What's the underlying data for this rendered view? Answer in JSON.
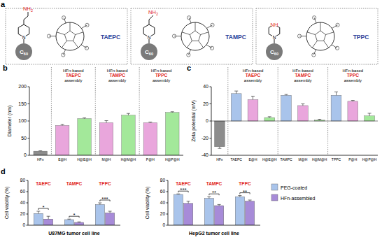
{
  "diagram": {
    "panel": "a",
    "structures": [
      {
        "name": "TAEPC",
        "core": {
          "symbol": "C",
          "subscript": "60"
        },
        "ring_atom": "N",
        "amine": {
          "symbol": "NH",
          "subscript": "2"
        }
      },
      {
        "name": "TAMPC",
        "core": {
          "symbol": "C",
          "subscript": "60"
        },
        "ring_atom": "N",
        "amine": {
          "symbol": "NH",
          "subscript": "2"
        }
      },
      {
        "name": "TPPC",
        "core": {
          "symbol": "C",
          "subscript": "60"
        },
        "ring_atom": "N",
        "amine": {
          "symbol": "NH"
        }
      }
    ]
  },
  "chart_data": [
    {
      "type": "bar",
      "panel": "b",
      "y_label": "Diameter (nm)",
      "categories": [
        "HFn",
        "E@H",
        "H@E@H",
        "M@H",
        "H@M@H",
        "P@H",
        "H@P@H"
      ],
      "values": [
        12,
        87,
        107,
        95,
        117,
        95,
        125
      ],
      "errors": [
        1,
        3,
        2,
        6,
        5,
        2,
        2
      ],
      "colors": [
        "#8c8c8c",
        "#e9a6dc",
        "#a3e89a",
        "#e9a6dc",
        "#a3e89a",
        "#e9a6dc",
        "#a3e89a"
      ],
      "ylim": [
        0,
        200
      ],
      "yticks": [
        0,
        50,
        100,
        150,
        200
      ],
      "group_labels": [
        {
          "prefix": "HFn-based",
          "name": "TAEPC",
          "suffix": "assembly"
        },
        {
          "prefix": "HFn-based",
          "name": "TAMPC",
          "suffix": "assembly"
        },
        {
          "prefix": "HFn-based",
          "name": "TPPC",
          "suffix": "assembly"
        }
      ]
    },
    {
      "type": "bar",
      "panel": "c",
      "y_label": "Zeta potential (mV)",
      "categories": [
        "HFn",
        "TAEPC",
        "E@H",
        "H@E@H",
        "TAMPC",
        "M@H",
        "H@M@H",
        "TPPC",
        "P@H",
        "H@P@H"
      ],
      "values": [
        -30,
        32,
        25,
        4,
        30,
        18,
        1,
        30,
        23,
        6
      ],
      "errors": [
        2,
        3,
        4,
        1,
        1,
        2,
        1,
        4,
        1,
        3
      ],
      "colors": [
        "#8c8c8c",
        "#a9c4eb",
        "#e9a6dc",
        "#a3e89a",
        "#a9c4eb",
        "#e9a6dc",
        "#a3e89a",
        "#a9c4eb",
        "#e9a6dc",
        "#a3e89a"
      ],
      "ylim": [
        -40,
        40
      ],
      "yticks": [
        -40,
        -20,
        0,
        20,
        40
      ],
      "group_labels": [
        {
          "prefix": "HFn-based",
          "name": "TAEPC",
          "suffix": "assembly"
        },
        {
          "prefix": "HFn-based",
          "name": "TAMPC",
          "suffix": "assembly"
        },
        {
          "prefix": "HFn-based",
          "name": "TPPC",
          "suffix": "assembly"
        }
      ]
    },
    {
      "type": "bar",
      "panel": "d",
      "title": "U87MG tumor cell line",
      "y_label": "Cell viability (%)",
      "categories": [
        "TAEPC",
        "TAMPC",
        "TPPC"
      ],
      "series": [
        {
          "name": "PEG-coated",
          "color": "#a9c4eb",
          "values": [
            21,
            10,
            37
          ],
          "errors": [
            4,
            1,
            3
          ]
        },
        {
          "name": "HFn-assembled",
          "color": "#a78bd8",
          "values": [
            11,
            5,
            22
          ],
          "errors": [
            5,
            1,
            3
          ]
        }
      ],
      "significance": [
        "*",
        "*",
        "***"
      ],
      "ylim": [
        0,
        80
      ],
      "yticks": [
        0,
        20,
        40,
        60,
        80
      ]
    },
    {
      "type": "bar",
      "title": "HepG2 tumor cell line",
      "y_label": "Cell viability (%)",
      "categories": [
        "TAEPC",
        "TAMPC",
        "TPPC"
      ],
      "series": [
        {
          "name": "PEG-coated",
          "color": "#a9c4eb",
          "values": [
            55,
            48,
            51
          ],
          "errors": [
            1,
            3,
            2
          ]
        },
        {
          "name": "HFn-assembled",
          "color": "#a78bd8",
          "values": [
            39,
            35,
            43
          ],
          "errors": [
            4,
            2,
            2
          ]
        }
      ],
      "significance": [
        "***",
        "**",
        "**"
      ],
      "ylim": [
        0,
        80
      ],
      "yticks": [
        0,
        20,
        40,
        60,
        80
      ],
      "legend": "right"
    }
  ]
}
